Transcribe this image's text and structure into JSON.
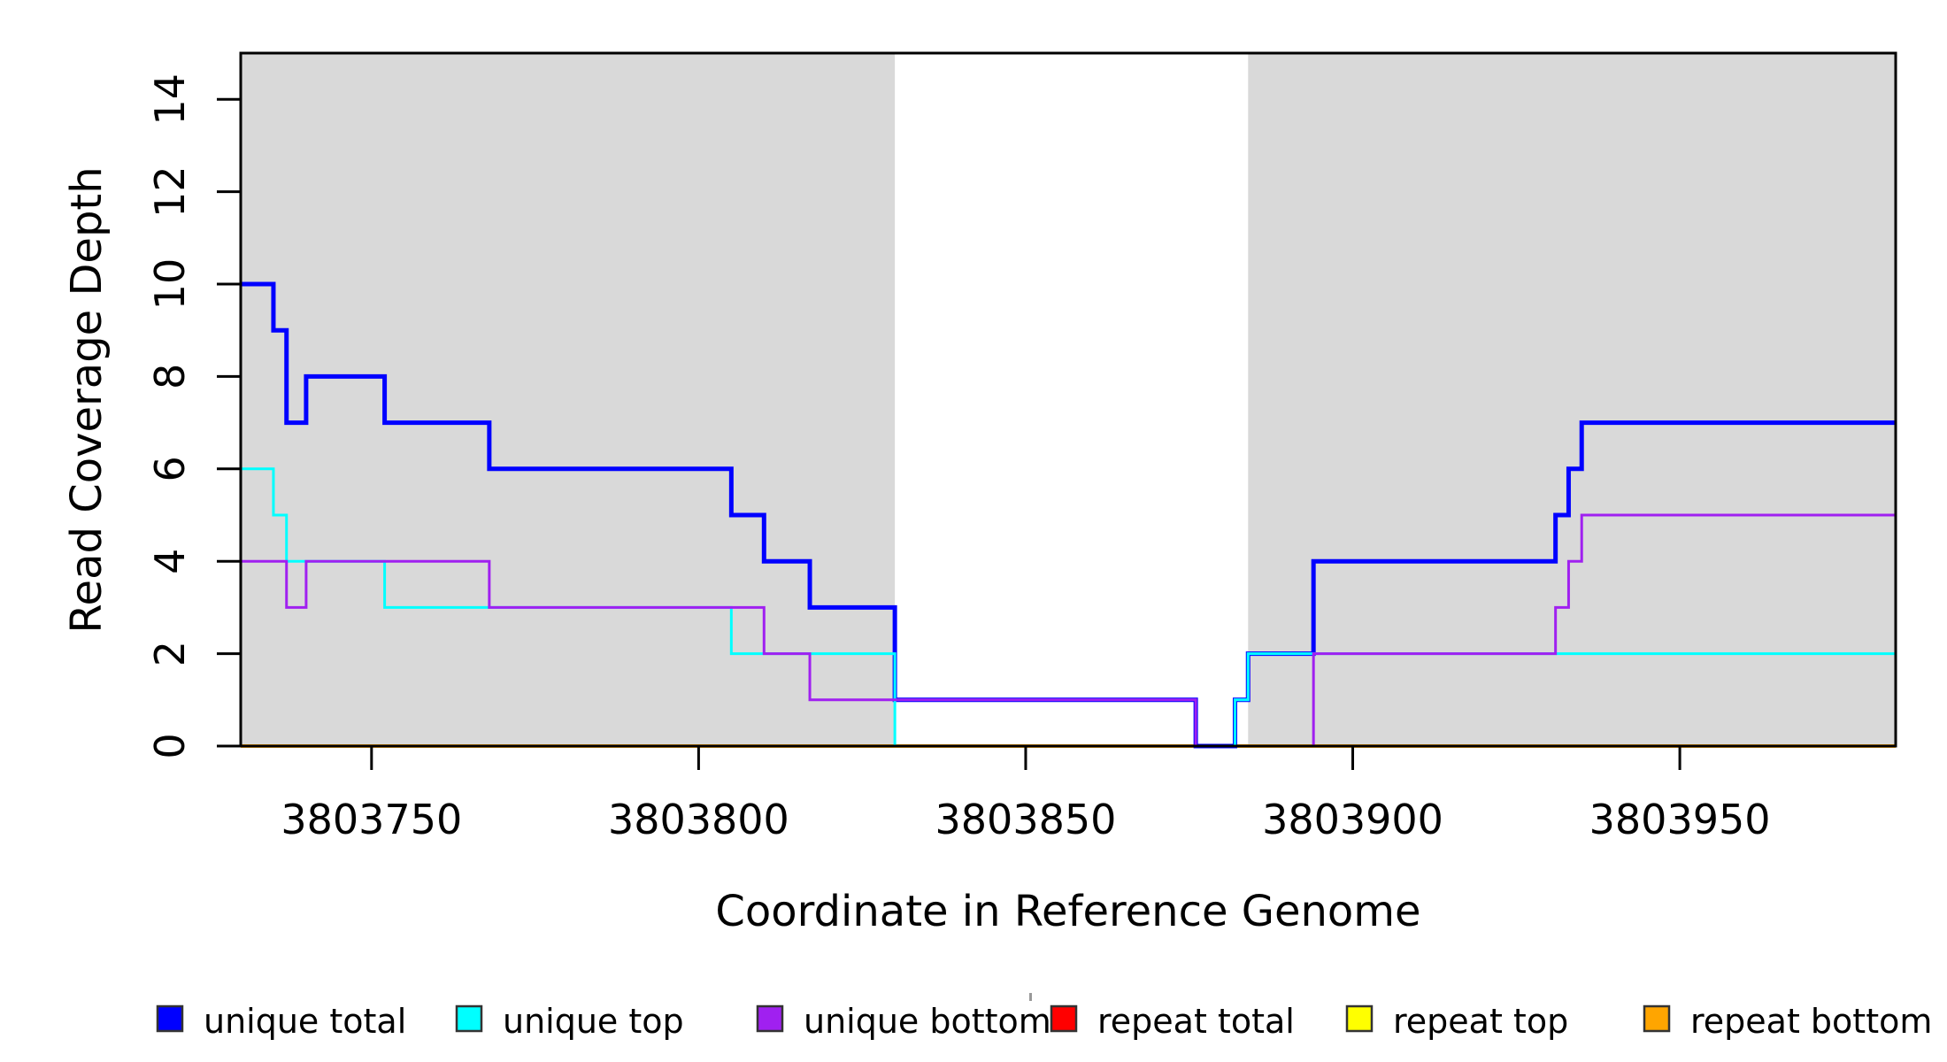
{
  "chart_data": {
    "type": "line",
    "step": true,
    "title": "",
    "xlabel": "Coordinate in Reference Genome",
    "ylabel": "Read Coverage Depth",
    "xlim": [
      3803730,
      3803983
    ],
    "ylim": [
      0,
      15
    ],
    "x_ticks": [
      3803750,
      3803800,
      3803850,
      3803900,
      3803950
    ],
    "y_ticks": [
      0,
      2,
      4,
      6,
      8,
      10,
      12,
      14
    ],
    "grid": false,
    "legend_position": "bottom",
    "band_color": "#D9D9D9",
    "axis_color": "#000000",
    "shaded_regions": [
      [
        3803730,
        3803830
      ],
      [
        3803884,
        3803983
      ]
    ],
    "series": [
      {
        "name": "unique total",
        "color": "#0000FF",
        "width": 5,
        "points": [
          [
            3803730,
            10
          ],
          [
            3803735,
            9
          ],
          [
            3803737,
            7
          ],
          [
            3803740,
            8
          ],
          [
            3803752,
            7
          ],
          [
            3803768,
            6
          ],
          [
            3803805,
            5
          ],
          [
            3803810,
            4
          ],
          [
            3803817,
            3
          ],
          [
            3803830,
            1
          ],
          [
            3803876,
            0
          ],
          [
            3803882,
            1
          ],
          [
            3803884,
            2
          ],
          [
            3803894,
            4
          ],
          [
            3803931,
            5
          ],
          [
            3803933,
            6
          ],
          [
            3803935,
            7
          ]
        ]
      },
      {
        "name": "unique top",
        "color": "#00FFFF",
        "width": 3,
        "points": [
          [
            3803730,
            6
          ],
          [
            3803735,
            5
          ],
          [
            3803737,
            4
          ],
          [
            3803752,
            3
          ],
          [
            3803805,
            2
          ],
          [
            3803830,
            0
          ],
          [
            3803882,
            1
          ],
          [
            3803884,
            2
          ]
        ]
      },
      {
        "name": "unique bottom",
        "color": "#A020F0",
        "width": 3,
        "points": [
          [
            3803730,
            4
          ],
          [
            3803737,
            3
          ],
          [
            3803740,
            4
          ],
          [
            3803768,
            3
          ],
          [
            3803810,
            2
          ],
          [
            3803817,
            1
          ],
          [
            3803876,
            0
          ],
          [
            3803894,
            2
          ],
          [
            3803931,
            3
          ],
          [
            3803933,
            4
          ],
          [
            3803935,
            5
          ]
        ]
      },
      {
        "name": "repeat total",
        "color": "#FF0000",
        "width": 3,
        "points": [
          [
            3803730,
            0
          ]
        ]
      },
      {
        "name": "repeat top",
        "color": "#FFFF00",
        "width": 3,
        "points": [
          [
            3803730,
            0
          ]
        ]
      },
      {
        "name": "repeat bottom",
        "color": "#FFA500",
        "width": 4,
        "points": [
          [
            3803730,
            0
          ]
        ]
      }
    ],
    "draw_order": [
      "repeat total",
      "repeat top",
      "repeat bottom",
      "unique total",
      "unique top",
      "unique bottom"
    ]
  }
}
